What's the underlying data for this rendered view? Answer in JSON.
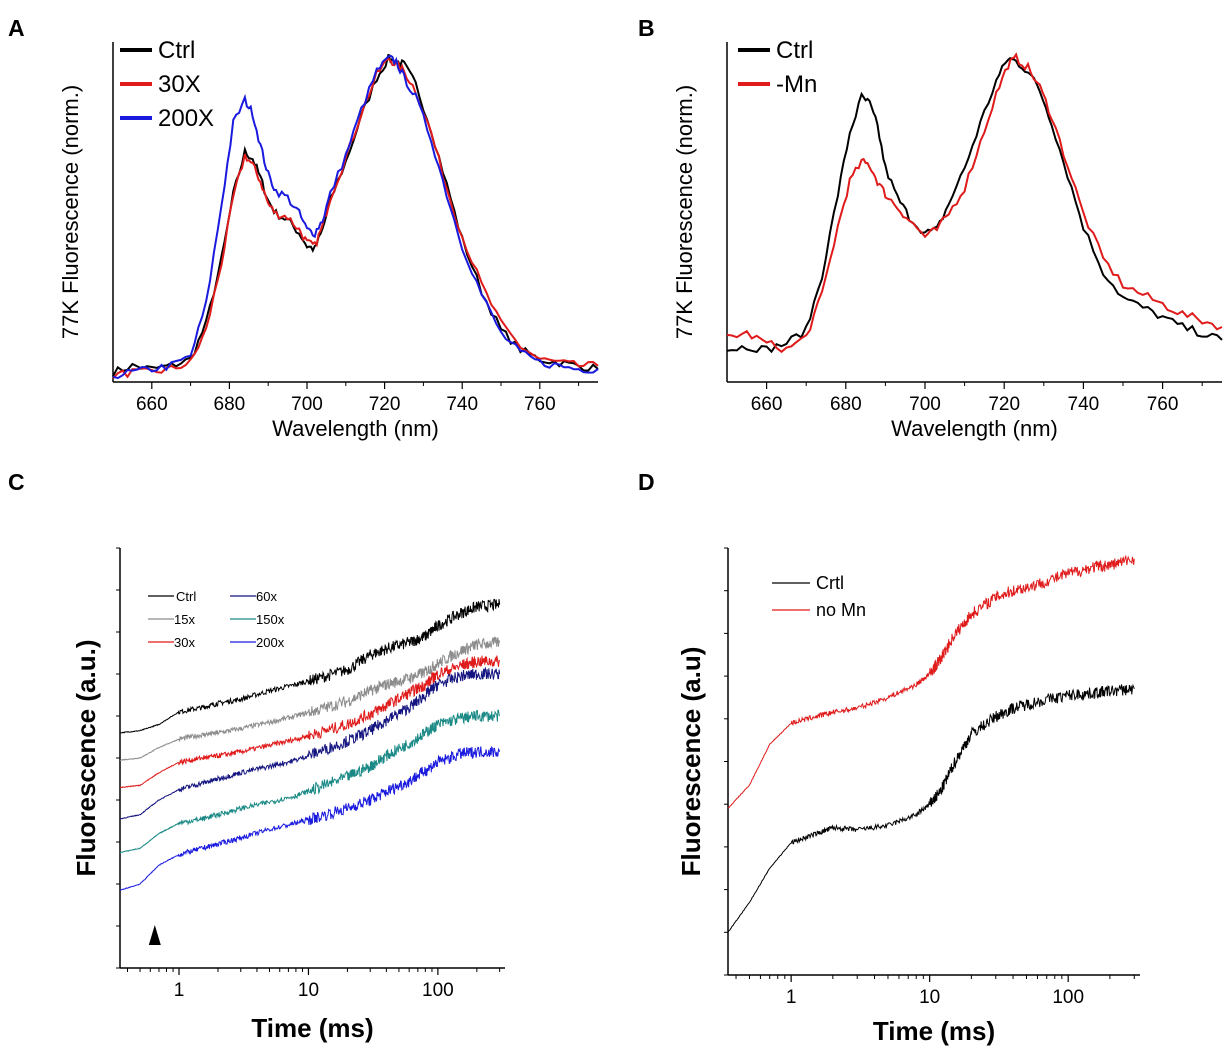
{
  "panels": {
    "A": {
      "letter": "A"
    },
    "B": {
      "letter": "B"
    },
    "C": {
      "letter": "C"
    },
    "D": {
      "letter": "D"
    }
  },
  "chart_data": [
    {
      "id": "A",
      "type": "line",
      "xlabel": "Wavelength (nm)",
      "ylabel": "77K Fluorescence (norm.)",
      "xlim": [
        650,
        775
      ],
      "ylim": [
        0,
        1.05
      ],
      "xticks": [
        "660",
        "680",
        "700",
        "720",
        "740",
        "760"
      ],
      "yticks": [],
      "legend_position": "top-left",
      "series": [
        {
          "name": "Ctrl",
          "color": "#000000",
          "x": [
            650,
            655,
            660,
            665,
            670,
            674,
            678,
            681,
            684,
            686,
            688,
            690,
            692,
            695,
            698,
            700,
            702,
            704,
            706,
            710,
            714,
            718,
            721,
            723,
            725,
            728,
            732,
            736,
            740,
            745,
            750,
            755,
            760,
            765,
            770,
            775
          ],
          "y": [
            0.03,
            0.05,
            0.04,
            0.05,
            0.07,
            0.18,
            0.38,
            0.58,
            0.71,
            0.69,
            0.63,
            0.56,
            0.52,
            0.5,
            0.46,
            0.42,
            0.41,
            0.47,
            0.56,
            0.68,
            0.82,
            0.94,
            1.0,
            0.99,
            0.98,
            0.92,
            0.78,
            0.61,
            0.44,
            0.28,
            0.16,
            0.1,
            0.07,
            0.06,
            0.05,
            0.04
          ]
        },
        {
          "name": "30X",
          "color": "#e01b1b",
          "x": [
            650,
            655,
            660,
            665,
            670,
            674,
            678,
            681,
            684,
            686,
            688,
            690,
            692,
            695,
            698,
            700,
            702,
            704,
            706,
            710,
            714,
            718,
            721,
            723,
            725,
            728,
            732,
            736,
            740,
            745,
            750,
            755,
            760,
            765,
            770,
            775
          ],
          "y": [
            0.02,
            0.03,
            0.03,
            0.04,
            0.06,
            0.16,
            0.37,
            0.57,
            0.7,
            0.67,
            0.62,
            0.55,
            0.52,
            0.51,
            0.47,
            0.43,
            0.42,
            0.48,
            0.57,
            0.69,
            0.83,
            0.95,
            1.0,
            0.98,
            0.96,
            0.9,
            0.77,
            0.6,
            0.45,
            0.3,
            0.18,
            0.11,
            0.07,
            0.06,
            0.05,
            0.05
          ]
        },
        {
          "name": "200X",
          "color": "#1a1adf",
          "x": [
            650,
            655,
            660,
            665,
            670,
            674,
            678,
            681,
            684,
            686,
            688,
            690,
            692,
            695,
            698,
            700,
            702,
            704,
            706,
            710,
            714,
            718,
            721,
            723,
            725,
            728,
            732,
            736,
            740,
            745,
            750,
            755,
            760,
            765,
            770,
            775
          ],
          "y": [
            0.02,
            0.03,
            0.04,
            0.05,
            0.08,
            0.24,
            0.55,
            0.8,
            0.87,
            0.83,
            0.73,
            0.64,
            0.59,
            0.57,
            0.52,
            0.47,
            0.46,
            0.5,
            0.58,
            0.7,
            0.84,
            0.96,
            1.0,
            0.99,
            0.94,
            0.88,
            0.75,
            0.58,
            0.42,
            0.27,
            0.15,
            0.09,
            0.06,
            0.05,
            0.04,
            0.04
          ]
        }
      ]
    },
    {
      "id": "B",
      "type": "line",
      "xlabel": "Wavelength (nm)",
      "ylabel": "77K Fluorescence (norm.)",
      "xlim": [
        650,
        775
      ],
      "ylim": [
        0,
        1.05
      ],
      "xticks": [
        "660",
        "680",
        "700",
        "720",
        "740",
        "760"
      ],
      "yticks": [],
      "legend_position": "top-left",
      "series": [
        {
          "name": "Ctrl",
          "color": "#000000",
          "x": [
            650,
            655,
            660,
            665,
            670,
            674,
            678,
            681,
            684,
            686,
            688,
            690,
            693,
            696,
            700,
            703,
            706,
            710,
            714,
            718,
            721,
            723,
            726,
            729,
            732,
            736,
            740,
            745,
            750,
            755,
            760,
            765,
            770,
            775
          ],
          "y": [
            0.1,
            0.11,
            0.1,
            0.12,
            0.16,
            0.33,
            0.58,
            0.77,
            0.88,
            0.86,
            0.79,
            0.66,
            0.57,
            0.51,
            0.46,
            0.47,
            0.55,
            0.66,
            0.8,
            0.93,
            1.0,
            0.99,
            0.96,
            0.9,
            0.8,
            0.64,
            0.48,
            0.34,
            0.26,
            0.23,
            0.2,
            0.17,
            0.15,
            0.13
          ]
        },
        {
          "name": "-Mn",
          "color": "#e01b1b",
          "x": [
            650,
            655,
            660,
            665,
            670,
            674,
            678,
            681,
            684,
            686,
            688,
            690,
            693,
            696,
            700,
            703,
            706,
            710,
            714,
            718,
            721,
            723,
            726,
            729,
            732,
            736,
            740,
            745,
            750,
            755,
            760,
            765,
            770,
            775
          ],
          "y": [
            0.14,
            0.15,
            0.12,
            0.1,
            0.14,
            0.27,
            0.48,
            0.62,
            0.68,
            0.67,
            0.62,
            0.58,
            0.54,
            0.5,
            0.45,
            0.47,
            0.52,
            0.6,
            0.74,
            0.89,
            0.98,
            1.0,
            0.97,
            0.91,
            0.82,
            0.67,
            0.52,
            0.38,
            0.3,
            0.27,
            0.24,
            0.21,
            0.19,
            0.17
          ]
        }
      ]
    },
    {
      "id": "C",
      "type": "line",
      "xscale": "log",
      "xlabel": "Time (ms)",
      "ylabel": "Fluorescence (a.u.)",
      "xlim": [
        0.35,
        330
      ],
      "ylim": [
        0,
        10
      ],
      "xticks": [
        "1",
        "10",
        "100"
      ],
      "xtick_values": [
        1,
        10,
        100
      ],
      "yticks": [],
      "legend_position": "top-left",
      "annotation": "black triangle marker near t = 0.65 ms",
      "series": [
        {
          "name": "Ctrl",
          "color": "#000000",
          "x": [
            0.35,
            0.5,
            0.7,
            1,
            1.5,
            2,
            3,
            5,
            8,
            12,
            20,
            30,
            40,
            60,
            80,
            100,
            150,
            200,
            300
          ],
          "y": [
            5.6,
            5.65,
            5.8,
            6.1,
            6.2,
            6.3,
            6.4,
            6.6,
            6.75,
            6.9,
            7.1,
            7.45,
            7.6,
            7.75,
            7.9,
            8.15,
            8.45,
            8.6,
            8.65
          ]
        },
        {
          "name": "15x",
          "color": "#8c8c8c",
          "x": [
            0.35,
            0.5,
            0.7,
            1,
            1.5,
            2,
            3,
            5,
            8,
            12,
            20,
            30,
            40,
            60,
            80,
            100,
            150,
            200,
            300
          ],
          "y": [
            4.95,
            5.0,
            5.25,
            5.45,
            5.55,
            5.6,
            5.7,
            5.85,
            6.0,
            6.15,
            6.35,
            6.6,
            6.75,
            6.9,
            7.05,
            7.25,
            7.55,
            7.7,
            7.75
          ]
        },
        {
          "name": "30x",
          "color": "#e01b1b",
          "x": [
            0.35,
            0.5,
            0.7,
            1,
            1.5,
            2,
            3,
            5,
            8,
            12,
            20,
            30,
            40,
            60,
            80,
            100,
            150,
            200,
            300
          ],
          "y": [
            4.3,
            4.35,
            4.65,
            4.9,
            5.0,
            5.05,
            5.15,
            5.3,
            5.45,
            5.6,
            5.8,
            6.05,
            6.25,
            6.55,
            6.75,
            7.0,
            7.2,
            7.3,
            7.3
          ]
        },
        {
          "name": "60x",
          "color": "#141480",
          "x": [
            0.35,
            0.5,
            0.7,
            1,
            1.5,
            2,
            3,
            5,
            8,
            12,
            20,
            30,
            40,
            60,
            80,
            100,
            150,
            200,
            300
          ],
          "y": [
            3.55,
            3.65,
            4.0,
            4.25,
            4.4,
            4.5,
            4.65,
            4.8,
            4.95,
            5.15,
            5.4,
            5.65,
            5.9,
            6.2,
            6.5,
            6.75,
            6.95,
            7.0,
            7.0
          ]
        },
        {
          "name": "150x",
          "color": "#1b8a86",
          "x": [
            0.35,
            0.5,
            0.7,
            1,
            1.5,
            2,
            3,
            5,
            8,
            12,
            20,
            30,
            40,
            60,
            80,
            100,
            150,
            200,
            300
          ],
          "y": [
            2.75,
            2.85,
            3.2,
            3.45,
            3.55,
            3.65,
            3.8,
            3.95,
            4.1,
            4.3,
            4.55,
            4.8,
            5.05,
            5.35,
            5.6,
            5.8,
            5.95,
            6.0,
            6.0
          ]
        },
        {
          "name": "200x",
          "color": "#1a1adf",
          "x": [
            0.35,
            0.5,
            0.7,
            1,
            1.5,
            2,
            3,
            5,
            8,
            12,
            20,
            30,
            40,
            60,
            80,
            100,
            150,
            200,
            300
          ],
          "y": [
            1.85,
            2.0,
            2.45,
            2.7,
            2.85,
            2.95,
            3.1,
            3.3,
            3.45,
            3.6,
            3.8,
            4.0,
            4.2,
            4.45,
            4.7,
            4.9,
            5.1,
            5.15,
            5.15
          ]
        }
      ]
    },
    {
      "id": "D",
      "type": "line",
      "xscale": "log",
      "xlabel": "Time (ms)",
      "ylabel": "Fluorescence (a.u)",
      "xlim": [
        0.35,
        330
      ],
      "ylim": [
        0,
        10
      ],
      "xticks": [
        "1",
        "10",
        "100"
      ],
      "xtick_values": [
        1,
        10,
        100
      ],
      "yticks": [],
      "legend_position": "top-left",
      "series": [
        {
          "name": "Crtl",
          "color": "#000000",
          "x": [
            0.35,
            0.5,
            0.7,
            1,
            1.5,
            2,
            3,
            5,
            8,
            10,
            12,
            15,
            20,
            30,
            40,
            60,
            100,
            150,
            200,
            300
          ],
          "y": [
            1.0,
            1.7,
            2.5,
            3.1,
            3.3,
            3.45,
            3.4,
            3.5,
            3.75,
            4.0,
            4.3,
            4.95,
            5.65,
            6.05,
            6.25,
            6.4,
            6.55,
            6.6,
            6.65,
            6.7
          ]
        },
        {
          "name": "no Mn",
          "color": "#e01b1b",
          "x": [
            0.35,
            0.5,
            0.7,
            1,
            1.5,
            2,
            3,
            5,
            8,
            10,
            12,
            15,
            20,
            30,
            40,
            60,
            100,
            150,
            200,
            300
          ],
          "y": [
            3.9,
            4.45,
            5.4,
            5.9,
            6.05,
            6.15,
            6.25,
            6.5,
            6.8,
            7.05,
            7.4,
            7.95,
            8.45,
            8.85,
            9.0,
            9.15,
            9.4,
            9.55,
            9.6,
            9.75
          ]
        }
      ]
    }
  ]
}
